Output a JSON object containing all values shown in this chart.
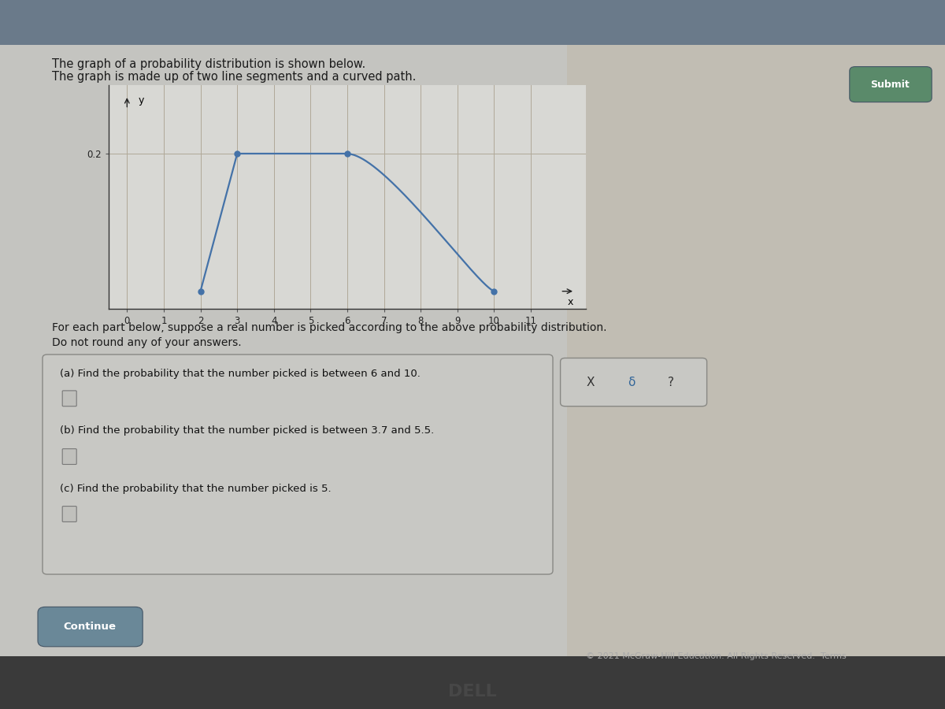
{
  "title_line1": "The graph of a probability distribution is shown below.",
  "title_line2": "The graph is made up of two line segments and a curved path.",
  "bg_outer": "#b0b4b8",
  "bg_content": "#c8cac8",
  "bg_top_bar": "#6a7a8a",
  "plot_bg": "#d8d8d4",
  "line_color": "#4472a8",
  "dot_color": "#4472a8",
  "grid_color": "#b0a898",
  "x_label": "x",
  "y_label": "y",
  "xlim": [
    -0.5,
    12.5
  ],
  "ylim": [
    -0.025,
    0.3
  ],
  "key_points": [
    [
      2,
      0
    ],
    [
      3,
      0.2
    ],
    [
      6,
      0.2
    ],
    [
      10,
      0
    ]
  ],
  "bezier_p0": [
    6,
    0.2
  ],
  "bezier_p1": [
    7.0,
    0.2
  ],
  "bezier_p2": [
    9.5,
    0.01
  ],
  "bezier_p3": [
    10,
    0
  ],
  "y_tick_val": 0.2,
  "y_tick_label": "0.2",
  "x_ticks": [
    0,
    1,
    2,
    3,
    4,
    5,
    6,
    7,
    8,
    9,
    10,
    11
  ],
  "description_line1": "For each part below, suppose a real number is picked according to the above probability distribution.",
  "description_line2": "Do not round any of your answers.",
  "qa_title_a": "(a) Find the probability that the number picked is between 6 and 10.",
  "qa_title_b": "(b) Find the probability that the number picked is between 3.7 and 5.5.",
  "qa_title_c": "(c) Find the probability that the number picked is 5.",
  "button_continue": "Continue",
  "button_submit": "Submit",
  "footer": "© 2021 McGraw-Hill Education. All Rights Reserved.  Terms",
  "x_symbols": [
    "X",
    "δ",
    "?"
  ],
  "qa_box_color": "#c8c8c4",
  "qa_box_edge": "#888884",
  "xd_box_color": "#c8c8c4",
  "xd_box_edge": "#888884",
  "btn_color": "#6a8898",
  "btn_edge": "#445566"
}
